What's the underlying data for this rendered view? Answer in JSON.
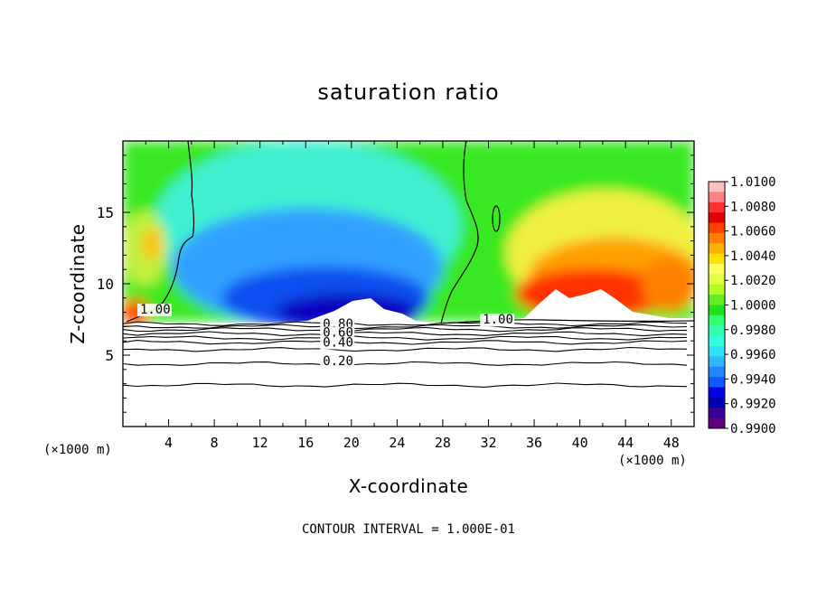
{
  "title": "saturation ratio",
  "footnote": "CONTOUR INTERVAL = 1.000E-01",
  "chart_data": {
    "type": "heatmap",
    "title": "saturation ratio",
    "xlabel": "X-coordinate",
    "ylabel": "Z-coordinate",
    "x_unit_label": "(×1000 m)",
    "y_unit_label": "(×1000 m)",
    "xlim": [
      0,
      50
    ],
    "ylim": [
      0,
      20
    ],
    "x_ticks": [
      4,
      8,
      12,
      16,
      20,
      24,
      28,
      32,
      36,
      40,
      44,
      48
    ],
    "y_ticks": [
      5,
      10,
      15
    ],
    "colorbar": {
      "ticks": [
        "1.0100",
        "1.0080",
        "1.0060",
        "1.0040",
        "1.0020",
        "1.0000",
        "0.9980",
        "0.9960",
        "0.9940",
        "0.9920",
        "0.9900"
      ],
      "colors": [
        "#ffc0c0",
        "#ff8080",
        "#ff3030",
        "#e00000",
        "#ff4000",
        "#ff8000",
        "#ffb000",
        "#ffe000",
        "#ffff60",
        "#e0ff40",
        "#b0ff20",
        "#60ee20",
        "#20e020",
        "#30ff70",
        "#30ffb0",
        "#30ffe0",
        "#30e0ff",
        "#30b8ff",
        "#2088ff",
        "#1058ff",
        "#0000e0",
        "#0000b0",
        "#3a0090",
        "#600080"
      ]
    },
    "contour_interval": "1.000E-01",
    "contour_labels": [
      {
        "text": "1.00",
        "x": 1.5,
        "z": 7.9
      },
      {
        "text": "1.00",
        "x": 31.5,
        "z": 7.2
      },
      {
        "text": "0.80",
        "x": 17.5,
        "z": 6.9
      },
      {
        "text": "0.60",
        "x": 17.5,
        "z": 6.3
      },
      {
        "text": "0.40",
        "x": 17.5,
        "z": 5.6
      },
      {
        "text": "0.20",
        "x": 17.5,
        "z": 4.3
      }
    ],
    "contour_lines_below_cloud": [
      {
        "z": 7.2
      },
      {
        "z": 7.0
      },
      {
        "z": 6.8
      },
      {
        "z": 6.5
      },
      {
        "z": 6.2
      },
      {
        "z": 5.9
      },
      {
        "z": 5.4
      },
      {
        "z": 4.4,
        "label": "0.20"
      },
      {
        "z": 2.9
      }
    ]
  }
}
